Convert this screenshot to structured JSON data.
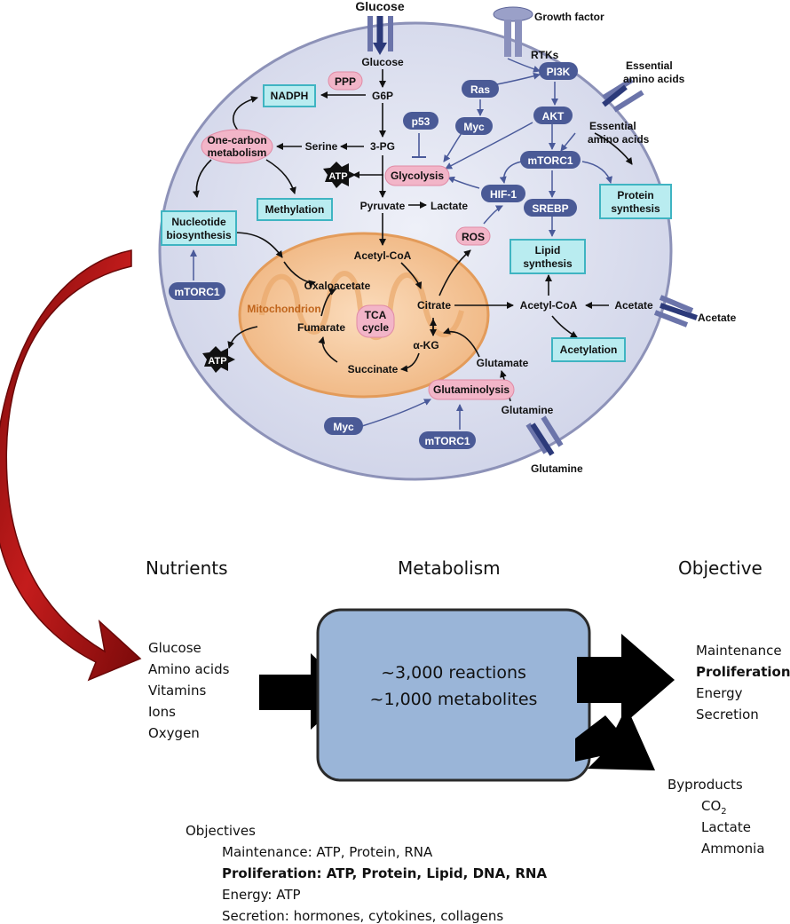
{
  "cell": {
    "glucose_in": "Glucose",
    "growth_factor": "Growth factor",
    "rtks": "RTKs",
    "ess_aa_out": "Essential amino acids",
    "ess_aa_in": "Essential amino acids",
    "acetate_out": "Acetate",
    "glutamine_out": "Glutamine",
    "glucose": "Glucose",
    "g6p": "G6P",
    "ppp": "PPP",
    "nadph": "NADPH",
    "pg3": "3-PG",
    "serine": "Serine",
    "one_carbon": "One-carbon metabolism",
    "methylation": "Methylation",
    "nucleotide": "Nucleotide biosynthesis",
    "mtorc1_a": "mTORC1",
    "mtorc1_b": "mTORC1",
    "mtorc1_c": "mTORC1",
    "atp1": "ATP",
    "atp2": "ATP",
    "glycolysis": "Glycolysis",
    "p53": "p53",
    "ras": "Ras",
    "myc1": "Myc",
    "myc2": "Myc",
    "pi3k": "PI3K",
    "akt": "AKT",
    "hif1": "HIF-1",
    "srebp": "SREBP",
    "protein_syn": "Protein synthesis",
    "lipid_syn": "Lipid synthesis",
    "ros": "ROS",
    "pyruvate": "Pyruvate",
    "lactate": "Lactate",
    "acetylcoa1": "Acetyl-CoA",
    "acetylcoa2": "Acetyl-CoA",
    "acetate": "Acetate",
    "acetylation": "Acetylation",
    "mitochondrion": "Mitochondrion",
    "oxaloacetate": "Oxaloacetate",
    "citrate": "Citrate",
    "tca": "TCA cycle",
    "fumarate": "Fumarate",
    "akg": "α-KG",
    "succinate": "Succinate",
    "glutamate": "Glutamate",
    "glutaminolysis": "Glutaminolysis",
    "glutamine": "Glutamine"
  },
  "flow": {
    "nutrients_title": "Nutrients",
    "metabolism_title": "Metabolism",
    "objective_title": "Objective",
    "nutrients": [
      "Glucose",
      "Amino acids",
      "Vitamins",
      "Ions",
      "Oxygen"
    ],
    "reactions": "~3,000 reactions",
    "metabolites": "~1,000 metabolites",
    "objectives_list": [
      "Maintenance",
      "Proliferation",
      "Energy",
      "Secretion"
    ],
    "byproducts_title": "Byproducts",
    "byproducts": [
      "CO",
      "2",
      "Lactate",
      "Ammonia"
    ]
  },
  "objectives_block": {
    "title": "Objectives",
    "lines": [
      "Maintenance: ATP, Protein, RNA",
      "Proliferation: ATP, Protein, Lipid, DNA, RNA",
      "Energy: ATP",
      "Secretion: hormones, cytokines, collagens"
    ]
  },
  "colors": {
    "cell_fill": "#dcdff0",
    "cell_stroke": "#8d92b8",
    "mito_fill": "#f6c79c",
    "node_blue": "#4a5a96",
    "pink": "#f2b5c8",
    "cyan": "#b9ecf0",
    "metab_box": "#9ab5d8",
    "red_arrow": "#a81414"
  }
}
